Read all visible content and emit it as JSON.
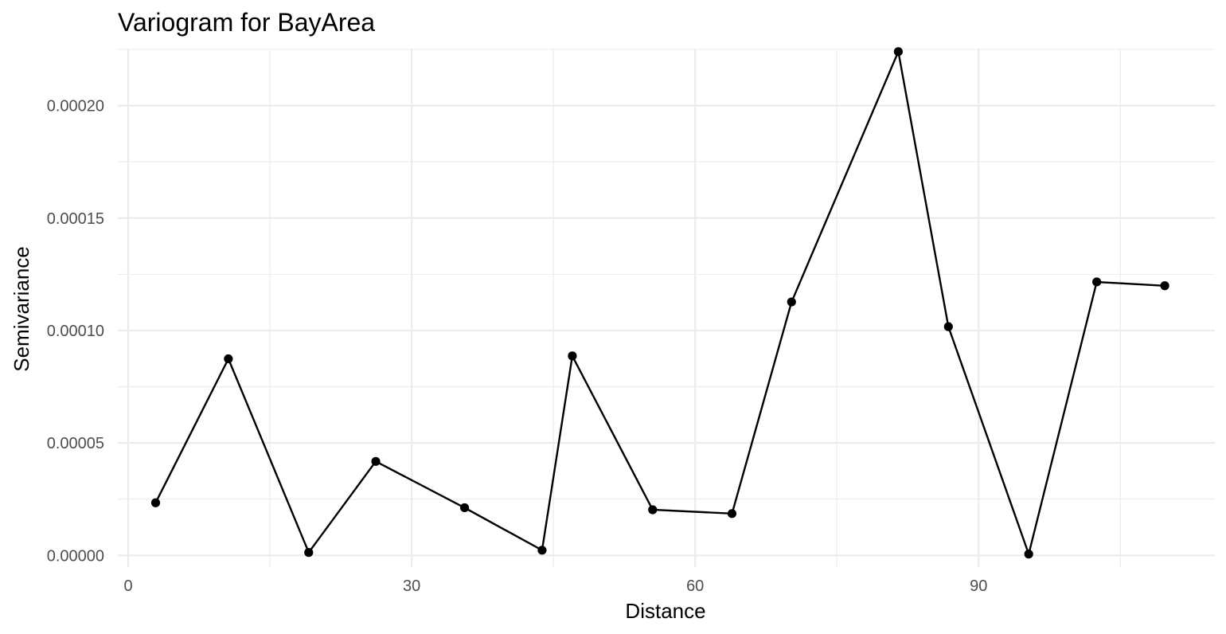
{
  "chart_data": {
    "type": "line",
    "title": "Variogram for BayArea",
    "xlabel": "Distance",
    "ylabel": "Semivariance",
    "xlim": [
      -1.1,
      115
    ],
    "ylim": [
      -5.2e-06,
      0.000225
    ],
    "x_ticks": [
      0,
      30,
      60,
      90
    ],
    "x_tick_labels": [
      "0",
      "30",
      "60",
      "90"
    ],
    "x_minor_ticks": [
      15,
      45,
      75,
      105
    ],
    "y_ticks": [
      0,
      5e-05,
      0.0001,
      0.00015,
      0.0002
    ],
    "y_tick_labels": [
      "0.00000",
      "0.00005",
      "0.00010",
      "0.00015",
      "0.00020"
    ],
    "y_minor_ticks": [
      2.5e-05,
      7.5e-05,
      0.000125,
      0.000175,
      0.000225
    ],
    "grid": true,
    "legend": "none",
    "points": true,
    "colors": {
      "line": "#000000",
      "point": "#000000",
      "grid": "#ebebeb",
      "tick_text": "#4d4d4d"
    },
    "series": [
      {
        "x": [
          2.9,
          10.6,
          19.1,
          26.2,
          35.6,
          43.8,
          47.0,
          55.5,
          63.9,
          70.2,
          81.5,
          86.8,
          95.3,
          102.5,
          109.7
        ],
        "y": [
          2.34e-05,
          8.74e-05,
          1.3e-06,
          4.18e-05,
          2.12e-05,
          2.3e-06,
          8.87e-05,
          2.03e-05,
          1.86e-05,
          0.0001127,
          0.000224,
          0.0001017,
          6e-07,
          0.0001216,
          0.0001199
        ]
      }
    ]
  }
}
